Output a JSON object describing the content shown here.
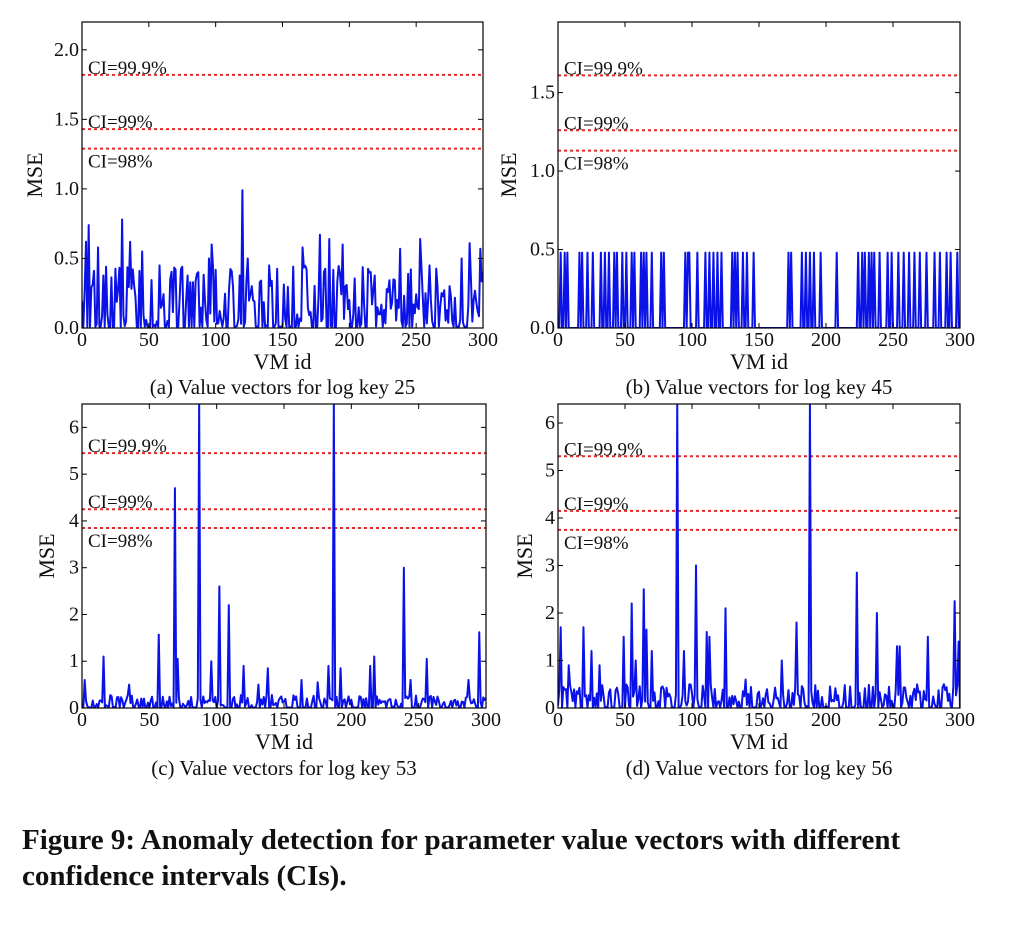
{
  "caption": "Figure 9: Anomaly detection for parameter value vectors with different confidence intervals (CIs).",
  "colors": {
    "series": "#0a12e8",
    "ci_line": "#e02a2a",
    "axis": "#000000"
  },
  "chart_data": [
    {
      "type": "line",
      "caption": "(a) Value vectors for log key 25",
      "xlabel": "VM id",
      "ylabel": "MSE",
      "xlim": [
        0,
        300
      ],
      "ylim": [
        0,
        2.2
      ],
      "xticks": [
        0,
        50,
        100,
        150,
        200,
        250,
        300
      ],
      "yticks": [
        0.0,
        0.5,
        1.0,
        1.5,
        2.0
      ],
      "ytick_labels": [
        "0.0",
        "0.5",
        "1.0",
        "1.5",
        "2.0"
      ],
      "thresholds": [
        {
          "label": "CI=99.9%",
          "y": 1.82
        },
        {
          "label": "CI=99%",
          "y": 1.43
        },
        {
          "label": "CI=98%",
          "y": 1.29
        }
      ],
      "series": [
        {
          "style": "noise",
          "seed": 25,
          "base_max": 0.45,
          "peaks": [
            [
              3,
              0.62
            ],
            [
              5,
              0.74
            ],
            [
              12,
              0.58
            ],
            [
              18,
              0.44
            ],
            [
              30,
              0.78
            ],
            [
              36,
              0.62
            ],
            [
              45,
              0.55
            ],
            [
              58,
              0.45
            ],
            [
              70,
              0.42
            ],
            [
              95,
              0.5
            ],
            [
              97,
              0.6
            ],
            [
              120,
              0.99
            ],
            [
              124,
              0.5
            ],
            [
              140,
              0.45
            ],
            [
              165,
              0.58
            ],
            [
              178,
              0.67
            ],
            [
              185,
              0.64
            ],
            [
              195,
              0.6
            ],
            [
              238,
              0.57
            ],
            [
              253,
              0.64
            ],
            [
              260,
              0.45
            ],
            [
              284,
              0.5
            ],
            [
              290,
              0.61
            ],
            [
              298,
              0.57
            ]
          ]
        }
      ]
    },
    {
      "type": "line",
      "caption": "(b) Value vectors for log key 45",
      "xlabel": "VM id",
      "ylabel": "MSE",
      "xlim": [
        0,
        300
      ],
      "ylim": [
        0,
        1.95
      ],
      "xticks": [
        0,
        50,
        100,
        150,
        200,
        250,
        300
      ],
      "yticks": [
        0.0,
        0.5,
        1.0,
        1.5
      ],
      "ytick_labels": [
        "0.0",
        "0.5",
        "1.0",
        "1.5"
      ],
      "thresholds": [
        {
          "label": "CI=99.9%",
          "y": 1.61
        },
        {
          "label": "CI=99%",
          "y": 1.26
        },
        {
          "label": "CI=98%",
          "y": 1.13
        }
      ],
      "series": [
        {
          "style": "binary",
          "high": 0.48,
          "high_ids": [
            2,
            5,
            7,
            16,
            18,
            22,
            26,
            32,
            35,
            38,
            42,
            44,
            48,
            51,
            55,
            57,
            62,
            64,
            66,
            70,
            77,
            79,
            95,
            97,
            98,
            104,
            110,
            113,
            116,
            119,
            122,
            130,
            132,
            134,
            138,
            141,
            146,
            172,
            174,
            182,
            185,
            188,
            191,
            196,
            208,
            224,
            227,
            229,
            232,
            234,
            236,
            240,
            246,
            249,
            254,
            258,
            262,
            266,
            270,
            275,
            281,
            285,
            290,
            293,
            298
          ]
        }
      ]
    },
    {
      "type": "line",
      "caption": "(c) Value vectors for log key 53",
      "xlabel": "VM id",
      "ylabel": "MSE",
      "xlim": [
        0,
        300
      ],
      "ylim": [
        0,
        6.5
      ],
      "xticks": [
        0,
        50,
        100,
        150,
        200,
        250,
        300
      ],
      "yticks": [
        0,
        1,
        2,
        3,
        4,
        5,
        6
      ],
      "ytick_labels": [
        "0",
        "1",
        "2",
        "3",
        "4",
        "5",
        "6"
      ],
      "thresholds": [
        {
          "label": "CI=99.9%",
          "y": 5.45
        },
        {
          "label": "CI=99%",
          "y": 4.25
        },
        {
          "label": "CI=98%",
          "y": 3.85
        }
      ],
      "series": [
        {
          "style": "noise",
          "seed": 53,
          "base_max": 0.28,
          "peaks": [
            [
              2,
              0.6
            ],
            [
              16,
              1.1
            ],
            [
              35,
              0.5
            ],
            [
              57,
              1.57
            ],
            [
              69,
              4.7
            ],
            [
              71,
              1.05
            ],
            [
              87,
              6.5
            ],
            [
              96,
              1.0
            ],
            [
              102,
              2.6
            ],
            [
              109,
              2.2
            ],
            [
              120,
              0.9
            ],
            [
              131,
              0.5
            ],
            [
              138,
              0.85
            ],
            [
              163,
              0.6
            ],
            [
              175,
              0.55
            ],
            [
              183,
              0.9
            ],
            [
              187,
              6.5
            ],
            [
              192,
              0.85
            ],
            [
              214,
              0.9
            ],
            [
              217,
              1.1
            ],
            [
              239,
              3.0
            ],
            [
              244,
              0.6
            ],
            [
              256,
              1.05
            ],
            [
              287,
              0.6
            ],
            [
              295,
              1.62
            ]
          ]
        }
      ]
    },
    {
      "type": "line",
      "caption": "(d) Value vectors for log key 56",
      "xlabel": "VM id",
      "ylabel": "MSE",
      "xlim": [
        0,
        300
      ],
      "ylim": [
        0,
        6.4
      ],
      "xticks": [
        0,
        50,
        100,
        150,
        200,
        250,
        300
      ],
      "yticks": [
        0,
        1,
        2,
        3,
        4,
        5,
        6
      ],
      "ytick_labels": [
        "0",
        "1",
        "2",
        "3",
        "4",
        "5",
        "6"
      ],
      "thresholds": [
        {
          "label": "CI=99.9%",
          "y": 5.3
        },
        {
          "label": "CI=99%",
          "y": 4.15
        },
        {
          "label": "CI=98%",
          "y": 3.75
        }
      ],
      "series": [
        {
          "style": "noise",
          "seed": 56,
          "base_max": 0.5,
          "peaks": [
            [
              2,
              1.7
            ],
            [
              8,
              0.9
            ],
            [
              19,
              1.7
            ],
            [
              25,
              1.2
            ],
            [
              31,
              0.9
            ],
            [
              49,
              1.5
            ],
            [
              55,
              2.2
            ],
            [
              58,
              1.0
            ],
            [
              64,
              2.5
            ],
            [
              66,
              1.65
            ],
            [
              70,
              1.2
            ],
            [
              89,
              6.4
            ],
            [
              94,
              1.2
            ],
            [
              103,
              3.0
            ],
            [
              111,
              1.6
            ],
            [
              113,
              1.5
            ],
            [
              125,
              2.1
            ],
            [
              140,
              0.6
            ],
            [
              167,
              1.0
            ],
            [
              178,
              1.8
            ],
            [
              188,
              6.4
            ],
            [
              223,
              2.85
            ],
            [
              238,
              2.0
            ],
            [
              253,
              1.3
            ],
            [
              255,
              1.3
            ],
            [
              276,
              1.5
            ],
            [
              288,
              0.5
            ],
            [
              296,
              2.25
            ],
            [
              299,
              1.4
            ]
          ]
        }
      ]
    }
  ]
}
